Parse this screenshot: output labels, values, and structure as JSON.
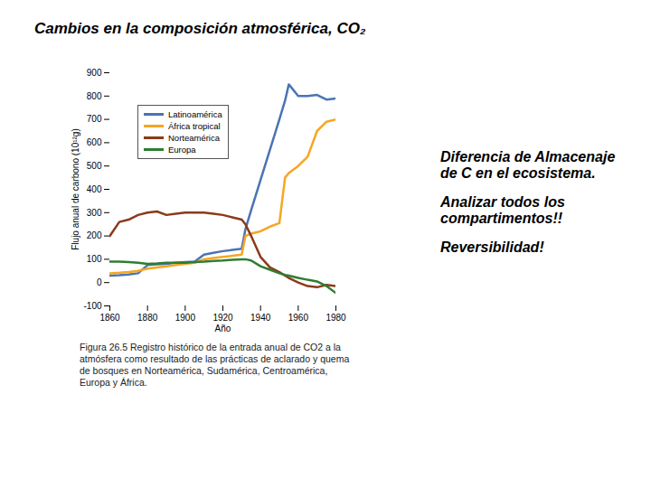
{
  "chart_data": {
    "type": "line",
    "title": "Cambios en la composición atmosférica, CO₂",
    "annotations": [
      "Diferencia de Almacenaje de C en el ecosistema.",
      "Analizar todos los compartimentos!!",
      "Reversibilidad!"
    ],
    "caption": "Figura 26.5 Registro histórico de la entrada anual de CO2 a la atmósfera como resultado de las prácticas de aclarado y quema de bosques en Norteamérica, Sudamérica, Centroamérica, Europa y África.",
    "x_label": "Año",
    "y_label": "Flujo anual de carbono (10¹²g)",
    "x": [
      1860,
      1865,
      1870,
      1875,
      1880,
      1885,
      1890,
      1895,
      1900,
      1905,
      1910,
      1915,
      1920,
      1925,
      1930,
      1932,
      1935,
      1940,
      1945,
      1950,
      1953,
      1955,
      1960,
      1965,
      1970,
      1975,
      1980
    ],
    "series": [
      {
        "name": "Latinoamérica",
        "color": "#4a74b4",
        "values": [
          30,
          32,
          35,
          40,
          75,
          78,
          80,
          85,
          88,
          90,
          120,
          128,
          135,
          140,
          145,
          230,
          310,
          440,
          570,
          700,
          780,
          850,
          800,
          800,
          805,
          785,
          790
        ]
      },
      {
        "name": "África tropical",
        "color": "#f5a623",
        "values": [
          40,
          42,
          45,
          50,
          60,
          65,
          70,
          75,
          80,
          85,
          100,
          105,
          110,
          115,
          120,
          200,
          210,
          220,
          240,
          255,
          450,
          470,
          500,
          540,
          650,
          690,
          700
        ]
      },
      {
        "name": "Norteamérica",
        "color": "#8b3a1a",
        "values": [
          200,
          260,
          270,
          290,
          300,
          305,
          290,
          295,
          300,
          300,
          300,
          295,
          290,
          280,
          270,
          250,
          200,
          110,
          65,
          45,
          30,
          20,
          0,
          -15,
          -20,
          -10,
          -15
        ]
      },
      {
        "name": "Europa",
        "color": "#2e7d32",
        "values": [
          90,
          90,
          88,
          85,
          80,
          82,
          85,
          85,
          85,
          88,
          90,
          93,
          95,
          98,
          100,
          100,
          95,
          70,
          55,
          40,
          33,
          30,
          20,
          12,
          5,
          -15,
          -45
        ]
      }
    ],
    "xlim": [
      1860,
      1980
    ],
    "xticks": [
      1860,
      1880,
      1900,
      1920,
      1940,
      1960,
      1980
    ],
    "ylim": [
      -100,
      900
    ],
    "yticks": [
      -100,
      0,
      100,
      200,
      300,
      400,
      500,
      600,
      700,
      800,
      900
    ],
    "grid": false,
    "legend": "top-left"
  }
}
